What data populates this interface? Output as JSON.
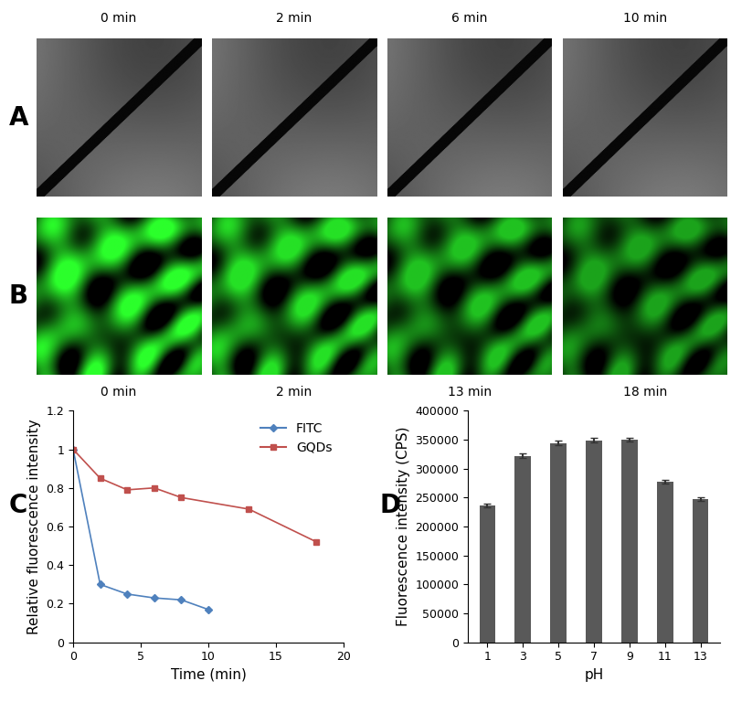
{
  "image_panels": [
    {
      "label": "A",
      "captions": [
        "0 min",
        "2 min",
        "6 min",
        "10 min"
      ]
    },
    {
      "label": "B",
      "captions": [
        "0 min",
        "2 min",
        "13 min",
        "18 min"
      ]
    }
  ],
  "chart_data": [
    {
      "type": "line",
      "annotations": [
        "C"
      ],
      "x_label": "Time (min)",
      "y_label": "Relative fluorescence intensity",
      "xlim": [
        0,
        20
      ],
      "xticks": [
        0,
        5,
        10,
        15,
        20
      ],
      "ylim": [
        0,
        1.2
      ],
      "yticks": [
        0,
        0.2,
        0.4,
        0.6,
        0.8,
        1,
        1.2
      ],
      "legend": "upper right",
      "series": [
        {
          "name": "FITC",
          "color": "#4f81bd",
          "marker": "diamond",
          "line_style": "solid",
          "x": [
            0,
            2,
            4,
            6,
            8,
            10
          ],
          "values": [
            1,
            0.3,
            0.25,
            0.23,
            0.22,
            0.17
          ]
        },
        {
          "name": "GQDs",
          "color": "#c0504d",
          "marker": "square",
          "line_style": "solid",
          "x": [
            0,
            2,
            4,
            6,
            8,
            13,
            18
          ],
          "values": [
            1,
            0.85,
            0.79,
            0.8,
            0.75,
            0.69,
            0.52
          ]
        }
      ]
    },
    {
      "type": "bar",
      "annotations": [
        "D"
      ],
      "x_label": "pH",
      "y_label": "Fluorescence intensity (CPS)",
      "categories": [
        "1",
        "3",
        "5",
        "7",
        "9",
        "11",
        "13"
      ],
      "values": [
        236000,
        322000,
        344000,
        349000,
        350000,
        277000,
        247000
      ],
      "errors": [
        3000,
        4000,
        4000,
        4000,
        3000,
        3000,
        3000
      ],
      "color": "#595959",
      "ylim": [
        0,
        400000
      ],
      "yticks": [
        0,
        50000,
        100000,
        150000,
        200000,
        250000,
        300000,
        350000,
        400000
      ]
    }
  ]
}
